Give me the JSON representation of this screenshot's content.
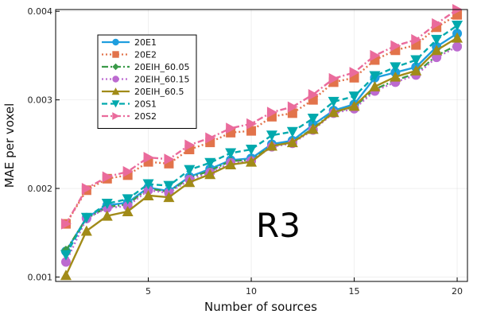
{
  "chart_data": {
    "type": "line",
    "title": "",
    "xlabel": "Number of sources",
    "ylabel": "MAE per voxel",
    "xlim": [
      0.5,
      20.5
    ],
    "ylim": [
      0.00095,
      0.00402
    ],
    "xticks": [
      5,
      10,
      15,
      20
    ],
    "xtick_labels": [
      "5",
      "10",
      "15",
      "20"
    ],
    "yticks": [
      0.001,
      0.002,
      0.003,
      0.004
    ],
    "ytick_labels": [
      "0.001",
      "0.002",
      "0.003",
      "0.004"
    ],
    "grid": true,
    "legend_position": "top-left",
    "annotation": "R3",
    "x": [
      1,
      2,
      3,
      4,
      5,
      6,
      7,
      8,
      9,
      10,
      11,
      12,
      13,
      14,
      15,
      16,
      17,
      18,
      19,
      20
    ],
    "series": [
      {
        "name": "20E1",
        "color": "#1f9ede",
        "marker": "circle",
        "dash": "solid",
        "values": [
          0.00129,
          0.00167,
          0.00181,
          0.00184,
          0.00201,
          0.00197,
          0.00213,
          0.00222,
          0.00232,
          0.00234,
          0.0025,
          0.00254,
          0.00272,
          0.00288,
          0.00295,
          0.00325,
          0.00331,
          0.00337,
          0.0036,
          0.00375
        ]
      },
      {
        "name": "20E2",
        "color": "#e2734b",
        "marker": "square",
        "dash": "dot",
        "values": [
          0.0016,
          0.00198,
          0.00211,
          0.00215,
          0.0023,
          0.00228,
          0.00244,
          0.00252,
          0.00263,
          0.00265,
          0.00281,
          0.00285,
          0.003,
          0.0032,
          0.00325,
          0.00345,
          0.00356,
          0.00362,
          0.00382,
          0.00396
        ]
      },
      {
        "name": "20EIH_60.05",
        "color": "#3b9a49",
        "marker": "diamond",
        "dash": "dashdot",
        "values": [
          0.0013,
          0.00166,
          0.00179,
          0.00182,
          0.002,
          0.00196,
          0.00212,
          0.0022,
          0.00231,
          0.00232,
          0.00248,
          0.00252,
          0.00268,
          0.00286,
          0.00292,
          0.00312,
          0.00322,
          0.0033,
          0.0035,
          0.00362
        ]
      },
      {
        "name": "20EIH_60.15",
        "color": "#bc6ad0",
        "marker": "circle",
        "dash": "dot",
        "values": [
          0.00117,
          0.00166,
          0.00178,
          0.0018,
          0.00198,
          0.00195,
          0.0021,
          0.00218,
          0.00229,
          0.00231,
          0.00247,
          0.00251,
          0.00266,
          0.00285,
          0.0029,
          0.0031,
          0.0032,
          0.00328,
          0.00348,
          0.0036
        ]
      },
      {
        "name": "20EIH_60.5",
        "color": "#a18b18",
        "marker": "triangle-up",
        "dash": "solid",
        "values": [
          0.00102,
          0.00152,
          0.00169,
          0.00174,
          0.00192,
          0.0019,
          0.00207,
          0.00216,
          0.00227,
          0.0023,
          0.00248,
          0.00252,
          0.00267,
          0.00286,
          0.00293,
          0.00315,
          0.00326,
          0.00333,
          0.00356,
          0.0037
        ]
      },
      {
        "name": "20S1",
        "color": "#00a9ad",
        "marker": "triangle-down",
        "dash": "dash",
        "values": [
          0.00125,
          0.00167,
          0.00183,
          0.00188,
          0.00205,
          0.00203,
          0.00221,
          0.00229,
          0.0024,
          0.00244,
          0.0026,
          0.00264,
          0.00279,
          0.00298,
          0.00304,
          0.00327,
          0.00337,
          0.00345,
          0.00368,
          0.00384
        ]
      },
      {
        "name": "20S2",
        "color": "#ea6b9c",
        "marker": "triangle-right",
        "dash": "dashdot",
        "values": [
          0.0016,
          0.002,
          0.00213,
          0.00219,
          0.00235,
          0.00233,
          0.00249,
          0.00257,
          0.00268,
          0.00273,
          0.00286,
          0.00292,
          0.00306,
          0.00324,
          0.00331,
          0.0035,
          0.00361,
          0.00368,
          0.00386,
          0.00402
        ]
      }
    ]
  }
}
